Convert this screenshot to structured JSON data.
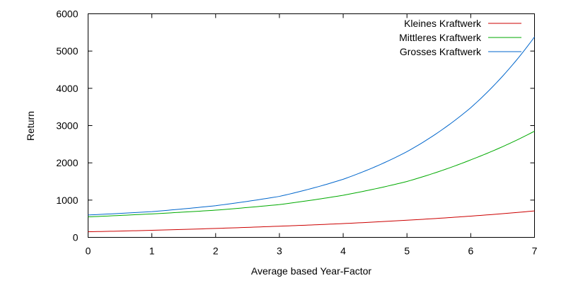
{
  "chart_data": {
    "type": "line",
    "xlabel": "Average based Year-Factor",
    "ylabel": "Return",
    "xlim": [
      0,
      7
    ],
    "ylim": [
      0,
      6000
    ],
    "xticks": [
      0,
      1,
      2,
      3,
      4,
      5,
      6,
      7
    ],
    "yticks": [
      0,
      1000,
      2000,
      3000,
      4000,
      5000,
      6000
    ],
    "grid": false,
    "legend_position": "top-right",
    "x": [
      0,
      1,
      2,
      3,
      4,
      5,
      6,
      7
    ],
    "series": [
      {
        "name": "Kleines Kraftwerk",
        "color": "#cc0000",
        "values": [
          150,
          190,
          240,
          300,
          370,
          460,
          570,
          710
        ]
      },
      {
        "name": "Mittleres Kraftwerk",
        "color": "#00aa00",
        "values": [
          550,
          630,
          730,
          880,
          1130,
          1500,
          2080,
          2850
        ]
      },
      {
        "name": "Grosses Kraftwerk",
        "color": "#0066cc",
        "values": [
          600,
          690,
          850,
          1100,
          1560,
          2300,
          3480,
          5380
        ]
      }
    ]
  }
}
